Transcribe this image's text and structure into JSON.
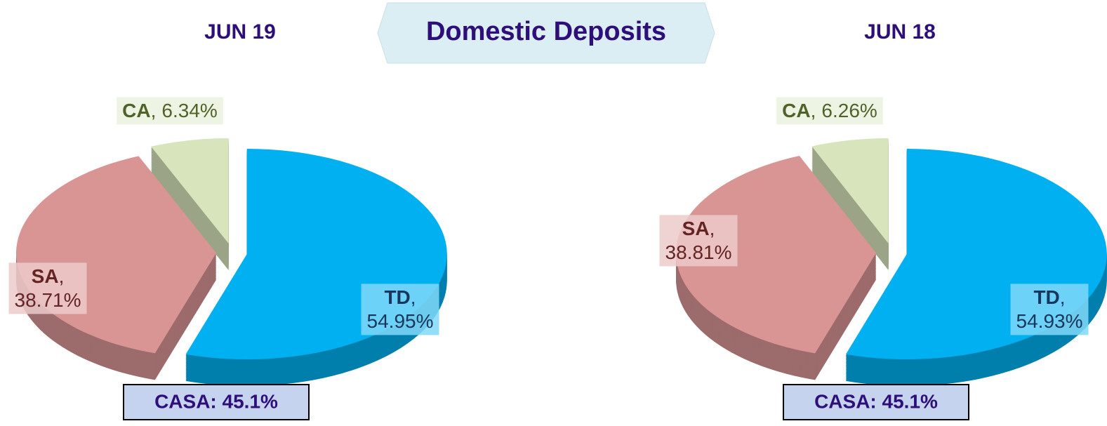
{
  "title": "Domestic Deposits",
  "chart_data": [
    {
      "type": "pie",
      "title": "JUN 19",
      "categories": [
        "TD",
        "SA",
        "CA"
      ],
      "values": [
        54.95,
        38.71,
        6.34
      ],
      "value_labels": [
        "54.95%",
        "38.71%",
        "6.34%"
      ],
      "label_separator": ",",
      "colors": [
        "#00b0f0",
        "#d99594",
        "#d7e4bc"
      ],
      "annotation": "CASA: 45.1%"
    },
    {
      "type": "pie",
      "title": "JUN 18",
      "categories": [
        "TD",
        "SA",
        "CA"
      ],
      "values": [
        54.93,
        38.81,
        6.26
      ],
      "value_labels": [
        "54.93%",
        "38.81%",
        "6.26%"
      ],
      "label_separator": ",",
      "colors": [
        "#00b0f0",
        "#d99594",
        "#d7e4bc"
      ],
      "annotation": "CASA: 45.1%"
    }
  ]
}
